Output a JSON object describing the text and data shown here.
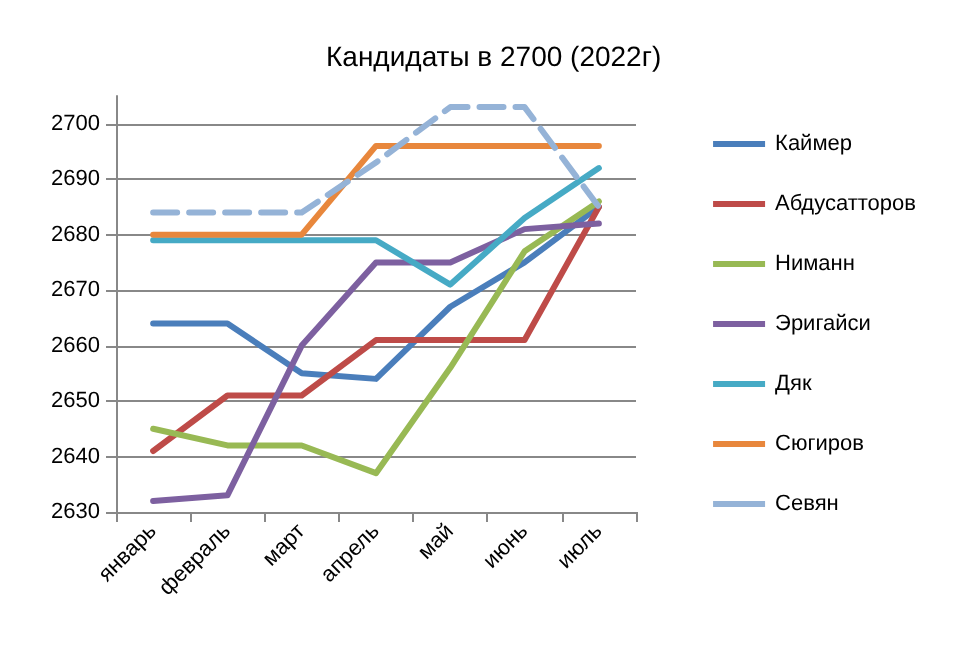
{
  "chart_data": {
    "type": "line",
    "title": "Кандидаты в 2700 (2022г)",
    "categories": [
      "январь",
      "февраль",
      "март",
      "апрель",
      "май",
      "июнь",
      "июль"
    ],
    "series": [
      {
        "name": "Каймер",
        "color": "#4a7ebb",
        "values": [
          2664,
          2664,
          2655,
          2654,
          2667,
          2675,
          2685
        ]
      },
      {
        "name": "Абдусатторов",
        "color": "#be4b48",
        "values": [
          2641,
          2651,
          2651,
          2661,
          2661,
          2661,
          2685
        ]
      },
      {
        "name": "Ниманн",
        "color": "#98b954",
        "values": [
          2645,
          2642,
          2642,
          2637,
          2656,
          2677,
          2686
        ]
      },
      {
        "name": "Эригайси",
        "color": "#7d60a0",
        "values": [
          2632,
          2633,
          2660,
          2675,
          2675,
          2681,
          2682
        ]
      },
      {
        "name": "Дяк",
        "color": "#46aac5",
        "values": [
          2679,
          2679,
          2679,
          2679,
          2671,
          2683,
          2692
        ]
      },
      {
        "name": "Сюгиров",
        "color": "#e8873c",
        "values": [
          2680,
          2680,
          2680,
          2696,
          2696,
          2696,
          2696
        ]
      },
      {
        "name": "Севян",
        "color": "#95b3d7",
        "line_style": "dashed",
        "values": [
          2684,
          2684,
          2684,
          2693,
          2703,
          2703,
          2685
        ]
      }
    ],
    "ylim": [
      2630,
      2705
    ],
    "yticks": [
      2630,
      2640,
      2650,
      2660,
      2670,
      2680,
      2690,
      2700
    ],
    "grid": "y",
    "legend": "right",
    "marker": "none"
  }
}
